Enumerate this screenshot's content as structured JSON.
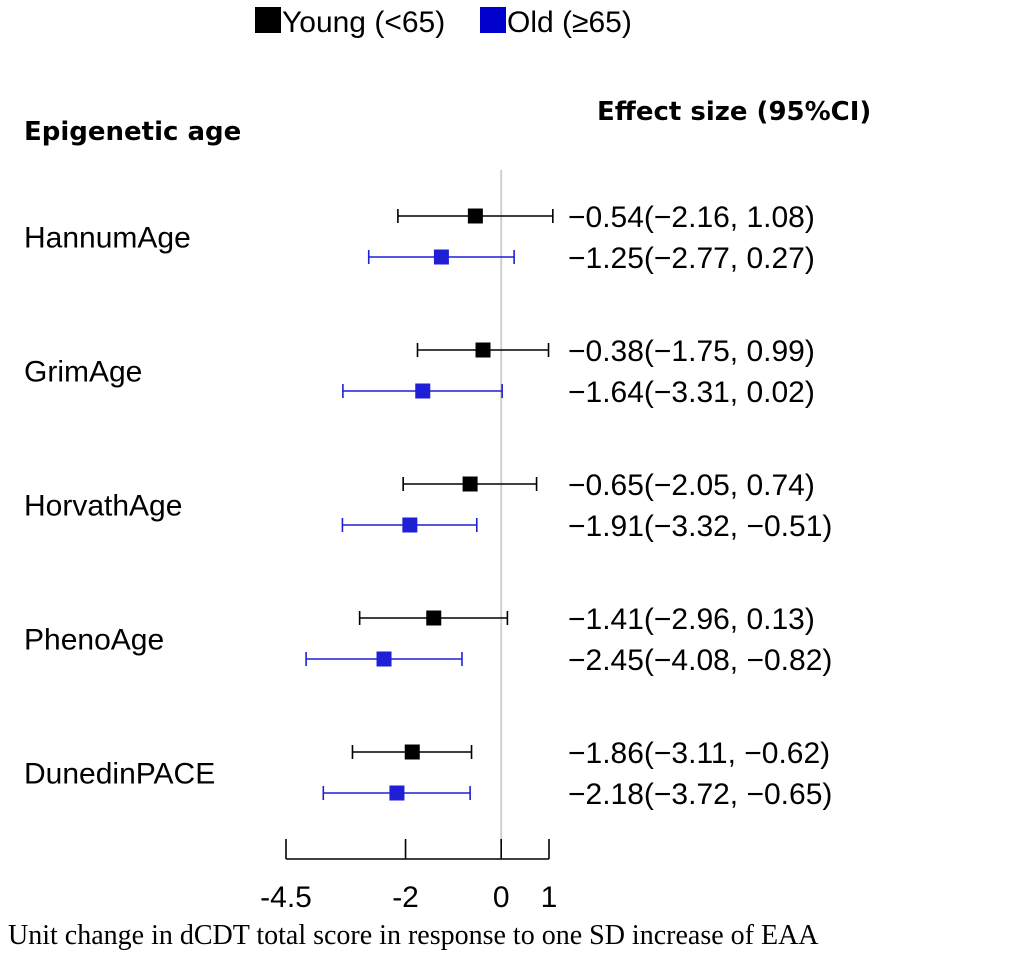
{
  "chart_data": {
    "type": "forest",
    "xlabel": "Unit change in dCDT total score in response to one SD increase of EAA",
    "column_header_left": "Epigenetic age",
    "column_header_right": "Effect size (95%CI)",
    "xlim": [
      -4.5,
      1
    ],
    "ticks": [
      -4.5,
      -2,
      0,
      1
    ],
    "tick_labels": [
      "-4.5",
      "-2",
      "0",
      "1"
    ],
    "reference_line": 0,
    "legend": [
      {
        "name": "Young (<65)",
        "color": "#000000"
      },
      {
        "name": "Old (≥65)",
        "color": "#0000cc"
      }
    ],
    "categories": [
      {
        "label": "HannumAge",
        "rows": [
          {
            "group": "Young",
            "estimate": -0.54,
            "lower": -2.16,
            "upper": 1.08,
            "text": "−0.54(−2.16, 1.08)",
            "color": "#000000"
          },
          {
            "group": "Old",
            "estimate": -1.25,
            "lower": -2.77,
            "upper": 0.27,
            "text": "−1.25(−2.77, 0.27)",
            "color": "#1f1fd6"
          }
        ]
      },
      {
        "label": "GrimAge",
        "rows": [
          {
            "group": "Young",
            "estimate": -0.38,
            "lower": -1.75,
            "upper": 0.99,
            "text": "−0.38(−1.75, 0.99)",
            "color": "#000000"
          },
          {
            "group": "Old",
            "estimate": -1.64,
            "lower": -3.31,
            "upper": 0.02,
            "text": "−1.64(−3.31, 0.02)",
            "color": "#1f1fd6"
          }
        ]
      },
      {
        "label": "HorvathAge",
        "rows": [
          {
            "group": "Young",
            "estimate": -0.65,
            "lower": -2.05,
            "upper": 0.74,
            "text": "−0.65(−2.05, 0.74)",
            "color": "#000000"
          },
          {
            "group": "Old",
            "estimate": -1.91,
            "lower": -3.32,
            "upper": -0.51,
            "text": "−1.91(−3.32, −0.51)",
            "color": "#1f1fd6"
          }
        ]
      },
      {
        "label": "PhenoAge",
        "rows": [
          {
            "group": "Young",
            "estimate": -1.41,
            "lower": -2.96,
            "upper": 0.13,
            "text": "−1.41(−2.96, 0.13)",
            "color": "#000000"
          },
          {
            "group": "Old",
            "estimate": -2.45,
            "lower": -4.08,
            "upper": -0.82,
            "text": "−2.45(−4.08, −0.82)",
            "color": "#1f1fd6"
          }
        ]
      },
      {
        "label": "DunedinPACE",
        "rows": [
          {
            "group": "Young",
            "estimate": -1.86,
            "lower": -3.11,
            "upper": -0.62,
            "text": "−1.86(−3.11, −0.62)",
            "color": "#000000"
          },
          {
            "group": "Old",
            "estimate": -2.18,
            "lower": -3.72,
            "upper": -0.65,
            "text": "−2.18(−3.72, −0.65)",
            "color": "#1f1fd6"
          }
        ]
      }
    ]
  }
}
